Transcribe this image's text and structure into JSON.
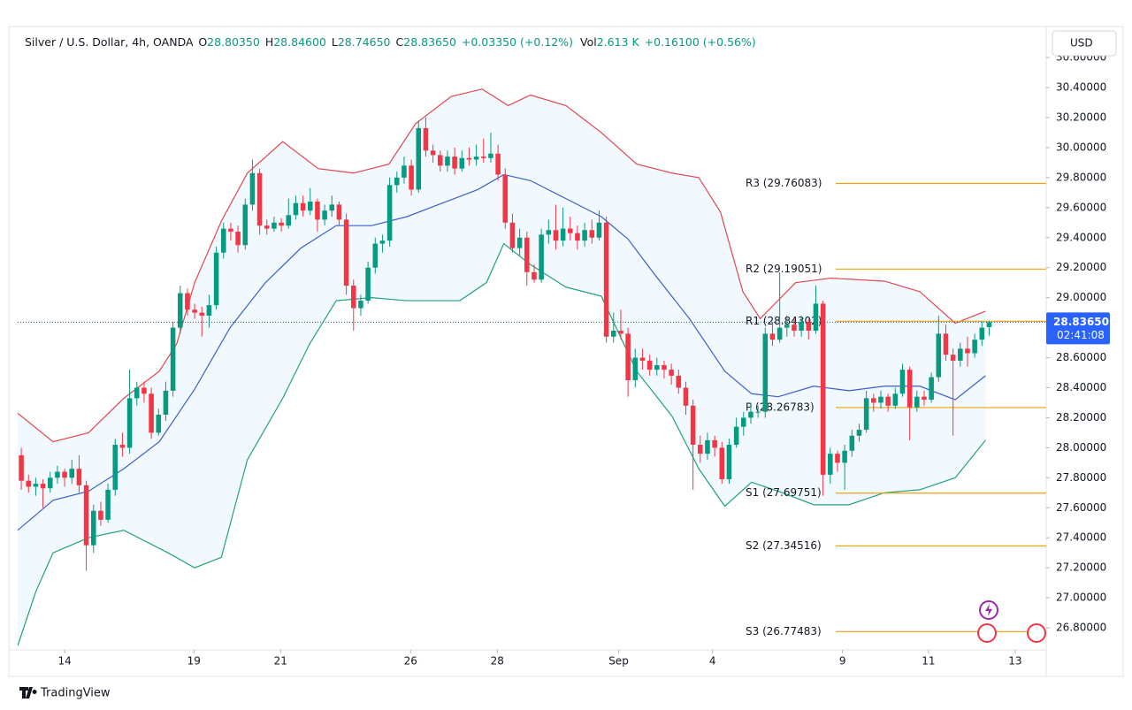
{
  "chart_data": {
    "type": "candlestick",
    "header": {
      "symbol": "Silver / U.S. Dollar, 4h, OANDA",
      "ohlc": [
        {
          "label": "O",
          "value": "28.80350"
        },
        {
          "label": "H",
          "value": "28.84600"
        },
        {
          "label": "L",
          "value": "28.74650"
        },
        {
          "label": "C",
          "value": "28.83650"
        }
      ],
      "change": "+0.03350 (+0.12%)",
      "volume": {
        "label": "Vol",
        "value": "2.613 K"
      },
      "volume_change": "+0.16100 (+0.56%)"
    },
    "xlim": [
      -0.5,
      141.9
    ],
    "xticks": [
      {
        "value": 6.0,
        "label": "14"
      },
      {
        "value": 23.9,
        "label": "19"
      },
      {
        "value": 35.9,
        "label": "21"
      },
      {
        "value": 53.9,
        "label": "26"
      },
      {
        "value": 65.9,
        "label": "28"
      },
      {
        "value": 82.7,
        "label": "Sep"
      },
      {
        "value": 95.7,
        "label": "4"
      },
      {
        "value": 113.7,
        "label": "9"
      },
      {
        "value": 125.6,
        "label": "11"
      },
      {
        "value": 137.6,
        "label": "13"
      }
    ],
    "ylim": [
      26.653,
      30.789
    ],
    "yticks": [
      {
        "value": 26.8,
        "label": "26.80000"
      },
      {
        "value": 27.0,
        "label": "27.00000"
      },
      {
        "value": 27.2,
        "label": "27.20000"
      },
      {
        "value": 27.4,
        "label": "27.40000"
      },
      {
        "value": 27.6,
        "label": "27.60000"
      },
      {
        "value": 27.8,
        "label": "27.80000"
      },
      {
        "value": 28.0,
        "label": "28.00000"
      },
      {
        "value": 28.2,
        "label": "28.20000"
      },
      {
        "value": 28.4,
        "label": "28.40000"
      },
      {
        "value": 28.6,
        "label": "28.60000"
      },
      {
        "value": 29.0,
        "label": "29.00000"
      },
      {
        "value": 29.2,
        "label": "29.20000"
      },
      {
        "value": 29.4,
        "label": "29.40000"
      },
      {
        "value": 29.6,
        "label": "29.60000"
      },
      {
        "value": 29.8,
        "label": "29.80000"
      },
      {
        "value": 30.0,
        "label": "30.00000"
      },
      {
        "value": 30.2,
        "label": "30.20000"
      },
      {
        "value": 30.4,
        "label": "30.40000"
      },
      {
        "value": 30.6,
        "label": "30.60000"
      }
    ],
    "grid": false,
    "up_color": "#089981",
    "down_color": "#f23645",
    "ohlc": [
      [
        27.95,
        28.0,
        27.72,
        27.78
      ],
      [
        27.78,
        27.82,
        27.7,
        27.74
      ],
      [
        27.74,
        27.8,
        27.68,
        27.76
      ],
      [
        27.76,
        27.79,
        27.6,
        27.73
      ],
      [
        27.73,
        27.84,
        27.7,
        27.8
      ],
      [
        27.8,
        27.88,
        27.76,
        27.84
      ],
      [
        27.84,
        27.86,
        27.74,
        27.8
      ],
      [
        27.8,
        27.92,
        27.76,
        27.86
      ],
      [
        27.86,
        27.95,
        27.7,
        27.75
      ],
      [
        27.75,
        27.78,
        27.18,
        27.35
      ],
      [
        27.35,
        27.62,
        27.3,
        27.58
      ],
      [
        27.58,
        27.64,
        27.48,
        27.52
      ],
      [
        27.52,
        27.76,
        27.5,
        27.72
      ],
      [
        27.72,
        28.06,
        27.68,
        28.02
      ],
      [
        28.02,
        28.1,
        27.94,
        28.0
      ],
      [
        28.0,
        28.52,
        27.96,
        28.33
      ],
      [
        28.33,
        28.44,
        28.28,
        28.4
      ],
      [
        28.4,
        28.44,
        28.3,
        28.36
      ],
      [
        28.36,
        28.4,
        28.06,
        28.1
      ],
      [
        28.1,
        28.26,
        28.08,
        28.22
      ],
      [
        28.22,
        28.44,
        28.18,
        28.38
      ],
      [
        28.38,
        28.84,
        28.34,
        28.8
      ],
      [
        28.8,
        29.08,
        28.76,
        29.03
      ],
      [
        29.03,
        29.06,
        28.88,
        28.92
      ],
      [
        28.92,
        28.96,
        28.86,
        28.9
      ],
      [
        28.9,
        28.94,
        28.74,
        28.88
      ],
      [
        28.88,
        29.02,
        28.8,
        28.95
      ],
      [
        28.95,
        29.34,
        28.92,
        29.3
      ],
      [
        29.3,
        29.5,
        29.26,
        29.46
      ],
      [
        29.46,
        29.5,
        29.38,
        29.44
      ],
      [
        29.44,
        29.48,
        29.3,
        29.35
      ],
      [
        29.35,
        29.66,
        29.32,
        29.62
      ],
      [
        29.62,
        29.92,
        29.58,
        29.83
      ],
      [
        29.83,
        29.86,
        29.42,
        29.48
      ],
      [
        29.48,
        29.52,
        29.42,
        29.46
      ],
      [
        29.46,
        29.54,
        29.44,
        29.5
      ],
      [
        29.5,
        29.53,
        29.44,
        29.48
      ],
      [
        29.48,
        29.66,
        29.46,
        29.55
      ],
      [
        29.55,
        29.68,
        29.52,
        29.63
      ],
      [
        29.63,
        29.68,
        29.54,
        29.58
      ],
      [
        29.58,
        29.73,
        29.55,
        29.64
      ],
      [
        29.64,
        29.66,
        29.44,
        29.52
      ],
      [
        29.52,
        29.62,
        29.48,
        29.58
      ],
      [
        29.58,
        29.68,
        29.54,
        29.62
      ],
      [
        29.62,
        29.64,
        29.48,
        29.52
      ],
      [
        29.52,
        29.56,
        29.02,
        29.08
      ],
      [
        29.08,
        29.12,
        28.78,
        28.93
      ],
      [
        28.93,
        29.02,
        28.88,
        28.98
      ],
      [
        28.98,
        29.24,
        28.96,
        29.2
      ],
      [
        29.2,
        29.4,
        29.16,
        29.36
      ],
      [
        29.36,
        29.42,
        29.3,
        29.38
      ],
      [
        29.38,
        29.8,
        29.34,
        29.75
      ],
      [
        29.75,
        29.84,
        29.7,
        29.8
      ],
      [
        29.8,
        29.94,
        29.76,
        29.88
      ],
      [
        29.88,
        29.92,
        29.68,
        29.72
      ],
      [
        29.72,
        30.18,
        29.7,
        30.13
      ],
      [
        30.13,
        30.2,
        29.94,
        29.98
      ],
      [
        29.98,
        30.02,
        29.9,
        29.95
      ],
      [
        29.95,
        29.98,
        29.84,
        29.88
      ],
      [
        29.88,
        29.98,
        29.84,
        29.94
      ],
      [
        29.94,
        30.0,
        29.82,
        29.86
      ],
      [
        29.86,
        29.98,
        29.84,
        29.93
      ],
      [
        29.93,
        30.0,
        29.88,
        29.92
      ],
      [
        29.92,
        30.02,
        29.88,
        29.94
      ],
      [
        29.94,
        30.06,
        29.9,
        29.93
      ],
      [
        29.93,
        30.1,
        29.9,
        29.96
      ],
      [
        29.96,
        30.02,
        29.78,
        29.82
      ],
      [
        29.82,
        29.86,
        29.46,
        29.5
      ],
      [
        29.5,
        29.56,
        29.3,
        29.33
      ],
      [
        29.33,
        29.46,
        29.28,
        29.4
      ],
      [
        29.4,
        29.44,
        29.08,
        29.17
      ],
      [
        29.17,
        29.22,
        29.1,
        29.12
      ],
      [
        29.12,
        29.46,
        29.1,
        29.42
      ],
      [
        29.42,
        29.52,
        29.36,
        29.45
      ],
      [
        29.45,
        29.62,
        29.32,
        29.38
      ],
      [
        29.38,
        29.6,
        29.34,
        29.46
      ],
      [
        29.46,
        29.54,
        29.38,
        29.43
      ],
      [
        29.43,
        29.48,
        29.32,
        29.38
      ],
      [
        29.38,
        29.5,
        29.34,
        29.45
      ],
      [
        29.45,
        29.52,
        29.36,
        29.4
      ],
      [
        29.4,
        29.58,
        29.38,
        29.5
      ],
      [
        29.5,
        29.54,
        28.7,
        28.74
      ],
      [
        28.74,
        28.9,
        28.7,
        28.78
      ],
      [
        28.78,
        28.92,
        28.72,
        28.76
      ],
      [
        28.76,
        28.8,
        28.34,
        28.45
      ],
      [
        28.45,
        28.66,
        28.4,
        28.6
      ],
      [
        28.6,
        28.66,
        28.52,
        28.58
      ],
      [
        28.58,
        28.62,
        28.48,
        28.52
      ],
      [
        28.52,
        28.6,
        28.48,
        28.55
      ],
      [
        28.55,
        28.58,
        28.46,
        28.52
      ],
      [
        28.52,
        28.56,
        28.42,
        28.48
      ],
      [
        28.48,
        28.52,
        28.36,
        28.4
      ],
      [
        28.4,
        28.44,
        28.22,
        28.28
      ],
      [
        28.28,
        28.32,
        27.72,
        28.02
      ],
      [
        28.02,
        28.08,
        27.9,
        27.96
      ],
      [
        27.96,
        28.1,
        27.92,
        28.05
      ],
      [
        28.05,
        28.08,
        27.94,
        28.0
      ],
      [
        28.0,
        28.04,
        27.76,
        27.79
      ],
      [
        27.79,
        28.06,
        27.76,
        28.02
      ],
      [
        28.02,
        28.2,
        28.0,
        28.14
      ],
      [
        28.14,
        28.24,
        28.08,
        28.2
      ],
      [
        28.2,
        28.3,
        28.16,
        28.24
      ],
      [
        28.24,
        28.28,
        28.2,
        28.24
      ],
      [
        28.24,
        28.8,
        28.2,
        28.76
      ],
      [
        28.76,
        28.84,
        28.68,
        28.72
      ],
      [
        28.72,
        29.17,
        28.7,
        28.8
      ],
      [
        28.8,
        28.88,
        28.74,
        28.82
      ],
      [
        28.82,
        28.86,
        28.74,
        28.78
      ],
      [
        28.78,
        28.88,
        28.74,
        28.84
      ],
      [
        28.84,
        28.86,
        28.72,
        28.78
      ],
      [
        28.78,
        29.08,
        28.76,
        28.96
      ],
      [
        28.96,
        28.98,
        27.68,
        27.82
      ],
      [
        27.82,
        28.0,
        27.76,
        27.96
      ],
      [
        27.96,
        27.98,
        27.84,
        27.9
      ],
      [
        27.9,
        28.02,
        27.72,
        27.98
      ],
      [
        27.98,
        28.12,
        27.94,
        28.08
      ],
      [
        28.08,
        28.16,
        28.04,
        28.12
      ],
      [
        28.12,
        28.38,
        28.1,
        28.33
      ],
      [
        28.33,
        28.36,
        28.24,
        28.3
      ],
      [
        28.3,
        28.38,
        28.26,
        28.34
      ],
      [
        28.34,
        28.36,
        28.24,
        28.28
      ],
      [
        28.28,
        28.4,
        28.26,
        28.36
      ],
      [
        28.36,
        28.56,
        28.34,
        28.52
      ],
      [
        28.52,
        28.54,
        28.05,
        28.27
      ],
      [
        28.27,
        28.38,
        28.24,
        28.34
      ],
      [
        28.34,
        28.38,
        28.28,
        28.32
      ],
      [
        28.32,
        28.5,
        28.3,
        28.47
      ],
      [
        28.47,
        28.88,
        28.44,
        28.76
      ],
      [
        28.76,
        28.82,
        28.58,
        28.62
      ],
      [
        28.62,
        28.66,
        28.08,
        28.58
      ],
      [
        28.58,
        28.7,
        28.54,
        28.66
      ],
      [
        28.66,
        28.74,
        28.54,
        28.63
      ],
      [
        28.63,
        28.76,
        28.6,
        28.72
      ],
      [
        28.72,
        28.84,
        28.68,
        28.8
      ],
      [
        28.8035,
        28.846,
        28.7465,
        28.8365
      ]
    ],
    "bands": [
      {
        "color": "#e0464e",
        "x": [
          -0.5,
          4.4,
          9.3,
          14.2,
          19.1,
          21.5,
          24,
          27.7,
          31.3,
          36.2,
          41.1,
          46,
          50.9,
          54.6,
          59.5,
          63.8,
          67.4,
          70.5,
          75.4,
          80.3,
          85.2,
          90.1,
          93.8,
          96.8,
          99.9,
          102.3,
          107.2,
          112.1,
          119.5,
          124.4,
          129.3,
          133.5
        ],
        "values": [
          28.23,
          28.04,
          28.1,
          28.33,
          28.51,
          28.69,
          29.1,
          29.51,
          29.83,
          30.04,
          29.86,
          29.83,
          29.89,
          30.16,
          30.34,
          30.39,
          30.28,
          30.35,
          30.28,
          30.1,
          29.89,
          29.83,
          29.8,
          29.57,
          29.04,
          28.86,
          29.1,
          29.13,
          29.11,
          29.04,
          28.83,
          28.91
        ]
      },
      {
        "color": "#3a5fcd",
        "x": [
          -0.5,
          4.4,
          9.3,
          14.2,
          19.1,
          24,
          28.9,
          33.8,
          38.7,
          43.6,
          48.5,
          53.4,
          58.3,
          63.2,
          66.8,
          70.5,
          75.4,
          80.3,
          84,
          87.6,
          92.5,
          97.4,
          101.1,
          104.8,
          109.7,
          114.6,
          119.5,
          124.4,
          129.3,
          133.5
        ],
        "values": [
          27.45,
          27.65,
          27.71,
          27.86,
          28.04,
          28.39,
          28.8,
          29.1,
          29.33,
          29.48,
          29.48,
          29.54,
          29.63,
          29.72,
          29.82,
          29.78,
          29.66,
          29.54,
          29.39,
          29.16,
          28.86,
          28.51,
          28.36,
          28.34,
          28.41,
          28.38,
          28.41,
          28.41,
          28.32,
          28.48
        ]
      },
      {
        "color": "#22a17a",
        "x": [
          -0.5,
          2,
          4.4,
          9.3,
          14.2,
          20.3,
          24,
          27.7,
          31.3,
          36.2,
          39.9,
          43.6,
          48.5,
          53.4,
          60.7,
          64.4,
          66.8,
          70.5,
          75.4,
          80.3,
          85.2,
          90.1,
          93.8,
          97.4,
          101.1,
          104.8,
          109.7,
          114.6,
          119.5,
          124.4,
          129.3,
          133.5
        ],
        "values": [
          26.68,
          27.04,
          27.3,
          27.4,
          27.45,
          27.3,
          27.2,
          27.27,
          27.92,
          28.33,
          28.69,
          28.98,
          29.0,
          28.98,
          28.98,
          29.1,
          29.36,
          29.22,
          29.07,
          29.01,
          28.51,
          28.21,
          27.86,
          27.61,
          27.77,
          27.71,
          27.62,
          27.62,
          27.7,
          27.72,
          27.8,
          28.05
        ]
      }
    ],
    "pivot_color": "#f0a30a",
    "pivots": [
      {
        "label": "R3 (29.76083)",
        "value": 29.76083
      },
      {
        "label": "R2 (29.19051)",
        "value": 29.19051
      },
      {
        "label": "R1 (28.84302)",
        "value": 28.84302
      },
      {
        "label": "P (28.26783)",
        "value": 28.26783
      },
      {
        "label": "S1 (27.69751)",
        "value": 27.69751
      },
      {
        "label": "S2 (27.34516)",
        "value": 27.34516
      },
      {
        "label": "S3 (26.77483)",
        "value": 26.77483
      }
    ],
    "last_price": {
      "value": 28.8365,
      "label": "28.83650",
      "countdown": "02:41:08",
      "color": "#2962ff"
    }
  },
  "toolbar": {
    "currency": "USD"
  },
  "footer": {
    "brand": "TradingView"
  }
}
